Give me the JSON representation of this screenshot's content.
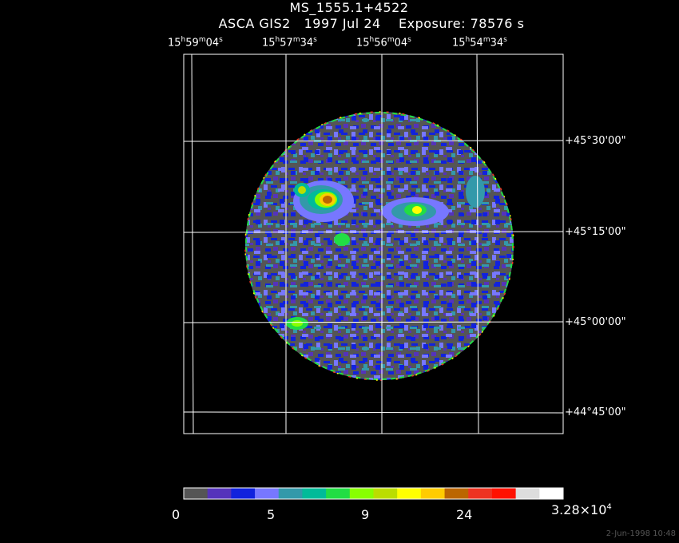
{
  "header": {
    "title": "MS_1555.1+4522",
    "instrument": "ASCA GIS2",
    "date": "1997 Jul 24",
    "exposure": "Exposure: 78576 s"
  },
  "ra_labels": [
    {
      "h": "15",
      "m": "59",
      "s": "04"
    },
    {
      "h": "15",
      "m": "57",
      "s": "34"
    },
    {
      "h": "15",
      "m": "56",
      "s": "04"
    },
    {
      "h": "15",
      "m": "54",
      "s": "34"
    }
  ],
  "dec_labels": [
    "+45°30'00\"",
    "+45°15'00\"",
    "+45°00'00\"",
    "+44°45'00\""
  ],
  "colorbar": {
    "colors": [
      "#555555",
      "#5533bb",
      "#1122dd",
      "#7777ff",
      "#3399aa",
      "#00bb99",
      "#22dd44",
      "#88ff00",
      "#bbdd00",
      "#ffff00",
      "#ffcc00",
      "#bb6600",
      "#ee3322",
      "#ff1100",
      "#dddddd",
      "#ffffff"
    ],
    "labels": [
      "0",
      "5",
      "9",
      "24",
      "3.28×10"
    ],
    "label_exp": "4"
  },
  "footer": "2-Jun-1998 10:48"
}
